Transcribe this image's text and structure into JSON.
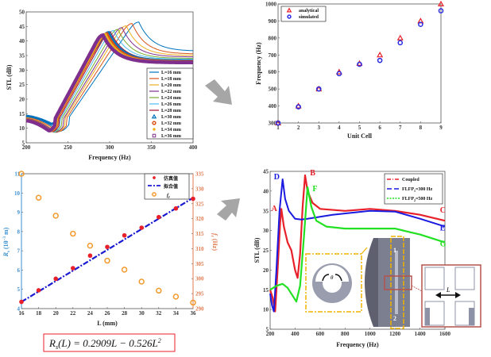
{
  "chart_data": [
    {
      "id": "stl-vs-length",
      "type": "line",
      "xlabel": "Frequency (Hz)",
      "ylabel": "STL (dB)",
      "xlim": [
        200,
        400
      ],
      "ylim": [
        5,
        50
      ],
      "xticks": [
        200,
        250,
        300,
        350,
        400
      ],
      "yticks": [
        5,
        10,
        15,
        20,
        25,
        30,
        35,
        40,
        45,
        50
      ],
      "legend_position": "bottom-right",
      "series": [
        {
          "name": "L=16 mm",
          "color": "#0072BD",
          "marker": "line",
          "start": 14,
          "valley": [
            240,
            9
          ],
          "peak": [
            335,
            46.5
          ],
          "end": 36.5
        },
        {
          "name": "L=18 mm",
          "color": "#D95319",
          "marker": "line",
          "start": 13.8,
          "valley": [
            238,
            8.8
          ],
          "peak": [
            327,
            46
          ],
          "end": 35.5
        },
        {
          "name": "L=20 mm",
          "color": "#EDB120",
          "marker": "line",
          "start": 13.6,
          "valley": [
            236,
            8.6
          ],
          "peak": [
            320,
            45.2
          ],
          "end": 35
        },
        {
          "name": "L=22 mm",
          "color": "#7E2F8E",
          "marker": "line",
          "start": 13.4,
          "valley": [
            235,
            8.6
          ],
          "peak": [
            315,
            44.6
          ],
          "end": 34.5
        },
        {
          "name": "L=24 mm",
          "color": "#77AC30",
          "marker": "line",
          "start": 13.3,
          "valley": [
            233,
            8.6
          ],
          "peak": [
            310,
            44
          ],
          "end": 34
        },
        {
          "name": "L=26 mm",
          "color": "#4DBEEE",
          "marker": "line",
          "start": 13.2,
          "valley": [
            232,
            8.7
          ],
          "peak": [
            305,
            43.6
          ],
          "end": 33.7
        },
        {
          "name": "L=28 mm",
          "color": "#A2142F",
          "marker": "line",
          "start": 13.1,
          "valley": [
            231,
            8.8
          ],
          "peak": [
            301,
            43.2
          ],
          "end": 33.4
        },
        {
          "name": "L=30 mm",
          "color": "#0072BD",
          "marker": "triangle",
          "start": 14.2,
          "valley": [
            230,
            11.5
          ],
          "peak": [
            299,
            43
          ],
          "end": 33.2
        },
        {
          "name": "L=32 mm",
          "color": "#D95319",
          "marker": "circle",
          "start": 13,
          "valley": [
            229,
            9
          ],
          "peak": [
            297,
            42.6
          ],
          "end": 33
        },
        {
          "name": "L=34 mm",
          "color": "#EDB120",
          "marker": "dot",
          "start": 12.8,
          "valley": [
            228,
            9
          ],
          "peak": [
            295,
            42.3
          ],
          "end": 32.8
        },
        {
          "name": "L=36 mm",
          "color": "#7E2F8E",
          "marker": "square",
          "start": 12.6,
          "valley": [
            227,
            9.2
          ],
          "peak": [
            292,
            42
          ],
          "end": 32.6
        }
      ]
    },
    {
      "id": "frequency-vs-unit-cell",
      "type": "scatter",
      "xlabel": "Unit Cell",
      "ylabel": "Frequency (Hz)",
      "xlim": [
        1,
        9
      ],
      "ylim": [
        300,
        1000
      ],
      "xticks": [
        1,
        2,
        3,
        4,
        5,
        6,
        7,
        8,
        9
      ],
      "yticks": [
        300,
        400,
        500,
        600,
        700,
        800,
        900,
        1000
      ],
      "legend_position": "top-left",
      "x": [
        1,
        2,
        3,
        4,
        5,
        6,
        7,
        8,
        9
      ],
      "series": [
        {
          "name": "analytical",
          "color": "#E8202A",
          "marker": "triangle",
          "values": [
            300,
            400,
            500,
            600,
            650,
            700,
            800,
            900,
            1000
          ]
        },
        {
          "name": "simulated",
          "color": "#2B2BE0",
          "marker": "circle",
          "values": [
            300,
            395,
            500,
            590,
            645,
            668,
            772,
            880,
            960
          ]
        }
      ]
    },
    {
      "id": "rs-and-fr-vs-length",
      "type": "scatter",
      "xlabel": "L (mm)",
      "ylabel_left": {
        "main": "R",
        "sub": "s",
        "rest": " (10",
        "sup": "−3",
        "end": " m)"
      },
      "ylabel_right": {
        "main": "f",
        "sub": "r",
        "rest": " (Hz)"
      },
      "xlim": [
        16,
        36
      ],
      "ylim_left": [
        4,
        11
      ],
      "ylim_right": [
        290,
        335
      ],
      "xticks": [
        16,
        18,
        20,
        22,
        24,
        26,
        28,
        30,
        32,
        34,
        36
      ],
      "yticks_left": [
        4,
        5,
        6,
        7,
        8,
        9,
        10,
        11
      ],
      "yticks_right": [
        290,
        295,
        300,
        305,
        310,
        315,
        320,
        325,
        330,
        335
      ],
      "legend_position": "top-right",
      "x": [
        16,
        18,
        20,
        22,
        24,
        26,
        28,
        30,
        32,
        34,
        36
      ],
      "series": [
        {
          "name": "仿真值",
          "color": "#E8202A",
          "marker": "dot",
          "axis": "left",
          "values": [
            4.35,
            4.95,
            5.55,
            6.1,
            6.75,
            7.2,
            7.8,
            8.2,
            8.75,
            9.2,
            9.7
          ]
        },
        {
          "name": "拟合值",
          "color": "#1A1AD0",
          "marker": "dashdot-line",
          "axis": "left",
          "values": [
            4.35,
            4.89,
            5.43,
            5.97,
            6.51,
            7.05,
            7.59,
            8.13,
            8.67,
            9.21,
            9.75
          ]
        },
        {
          "name": "f",
          "name_sub": "r",
          "color": "#F39A2C",
          "marker": "circle",
          "axis": "right",
          "values": [
            335,
            327,
            321,
            315,
            311,
            306,
            303,
            299,
            296,
            294,
            292
          ]
        }
      ],
      "formula": {
        "main": "R",
        "sub": "s",
        "rest": "(L) = 0.2909L − 0.526L",
        "sup": "2"
      }
    },
    {
      "id": "coupled-stl",
      "type": "line",
      "xlabel": "Frequency  (Hz)",
      "ylabel": "STL (dB)",
      "xlim": [
        200,
        1600
      ],
      "ylim": [
        5,
        45
      ],
      "xticks": [
        200,
        400,
        600,
        800,
        1000,
        1200,
        1400,
        1600
      ],
      "yticks": [
        5,
        10,
        15,
        20,
        25,
        30,
        35,
        40,
        45
      ],
      "legend_position": "top-right",
      "series": [
        {
          "name": "Coupled",
          "color": "#E8202A",
          "style": "dashdot-star",
          "points": [
            [
              200,
              15
            ],
            [
              220,
              13
            ],
            [
              240,
              9.5
            ],
            [
              260,
              20
            ],
            [
              280,
              32
            ],
            [
              290,
              35.5
            ],
            [
              310,
              31
            ],
            [
              340,
              27
            ],
            [
              370,
              25
            ],
            [
              400,
              20
            ],
            [
              420,
              18
            ],
            [
              440,
              24
            ],
            [
              460,
              36
            ],
            [
              480,
              44
            ],
            [
              500,
              40
            ],
            [
              540,
              37
            ],
            [
              600,
              35.5
            ],
            [
              800,
              35
            ],
            [
              1000,
              35.5
            ],
            [
              1200,
              35
            ],
            [
              1400,
              34
            ],
            [
              1600,
              32.5
            ]
          ]
        },
        {
          "name": "FLFP",
          "name_sub": "1",
          "name_rest": "=300 Hz",
          "color": "#1A1AE0",
          "style": "dash",
          "points": [
            [
              200,
              14
            ],
            [
              215,
              11
            ],
            [
              230,
              9.5
            ],
            [
              250,
              20
            ],
            [
              275,
              35
            ],
            [
              300,
              43
            ],
            [
              320,
              38
            ],
            [
              350,
              35
            ],
            [
              400,
              33
            ],
            [
              450,
              32.8
            ],
            [
              500,
              33
            ],
            [
              700,
              34
            ],
            [
              1000,
              35
            ],
            [
              1200,
              34.8
            ],
            [
              1400,
              33
            ],
            [
              1600,
              31
            ]
          ]
        },
        {
          "name": "FLFP",
          "name_sub": "2",
          "name_rest": "=500 Hz",
          "color": "#22E022",
          "style": "dot",
          "points": [
            [
              200,
              15
            ],
            [
              250,
              16
            ],
            [
              300,
              16.5
            ],
            [
              340,
              15.5
            ],
            [
              380,
              13.5
            ],
            [
              410,
              12
            ],
            [
              440,
              16
            ],
            [
              470,
              28
            ],
            [
              500,
              41
            ],
            [
              530,
              36
            ],
            [
              570,
              32.5
            ],
            [
              650,
              31
            ],
            [
              800,
              30.5
            ],
            [
              1000,
              30.5
            ],
            [
              1200,
              30.5
            ],
            [
              1400,
              29
            ],
            [
              1600,
              27
            ]
          ]
        }
      ],
      "annotations": [
        {
          "text": "A",
          "color": "#E8202A",
          "x": 210,
          "y": 35
        },
        {
          "text": "B",
          "color": "#E8202A",
          "x": 520,
          "y": 44
        },
        {
          "text": "C",
          "color": "#E8202A",
          "x": 1560,
          "y": 34.5
        },
        {
          "text": "D",
          "color": "#1A1AE0",
          "x": 230,
          "y": 43
        },
        {
          "text": "E",
          "color": "#1A1AE0",
          "x": 1560,
          "y": 30
        },
        {
          "text": "F",
          "color": "#22E022",
          "x": 540,
          "y": 40
        },
        {
          "text": "G",
          "color": "#22E022",
          "x": 1560,
          "y": 26
        }
      ],
      "inset": {
        "theta": "θ",
        "port_1": "1",
        "port_2": "2",
        "length": "L"
      }
    }
  ],
  "colors": {
    "arrow": "#A6A6A6",
    "inset_frame": "#F0B400",
    "zoom_frame": "#B5524D",
    "structure": "#8E92A6"
  }
}
